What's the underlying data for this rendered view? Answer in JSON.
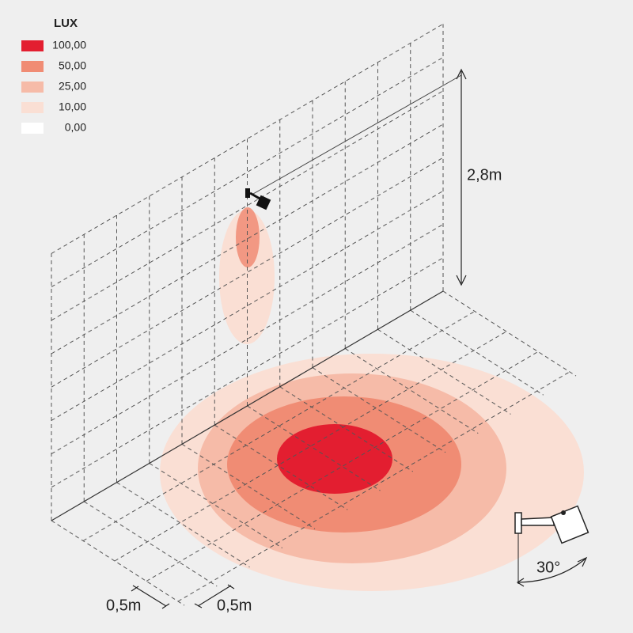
{
  "legend": {
    "title": "LUX",
    "items": [
      {
        "label": "100,00",
        "color": "#e31e30"
      },
      {
        "label": "50,00",
        "color": "#f08c74"
      },
      {
        "label": "25,00",
        "color": "#f6bba8"
      },
      {
        "label": "10,00",
        "color": "#fadfd4"
      },
      {
        "label": "0,00",
        "color": "#ffffff"
      }
    ]
  },
  "dimensions": {
    "height": "2,8m",
    "spacing_1": "0,5m",
    "spacing_2": "0,5m",
    "angle": "30°"
  }
}
